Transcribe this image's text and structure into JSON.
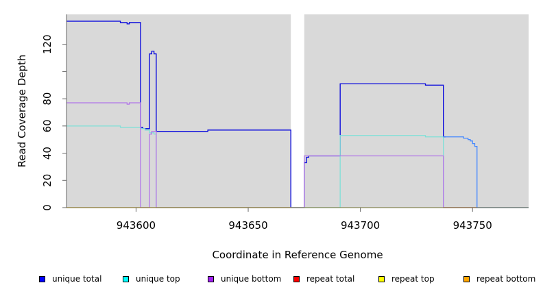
{
  "chart_data": {
    "type": "line",
    "xlabel": "Coordinate in Reference Genome",
    "ylabel": "Read Coverage Depth",
    "xlim": [
      943569,
      943775
    ],
    "ylim": [
      0,
      142
    ],
    "x_ticks": [
      943600,
      943650,
      943700,
      943750
    ],
    "x_tick_labels": [
      "943600",
      "943650",
      "943700",
      "943750"
    ],
    "y_ticks": [
      0,
      20,
      40,
      60,
      80,
      100,
      120
    ],
    "y_tick_labels": [
      "0",
      "20",
      "40",
      "60",
      "80",
      "",
      "120"
    ],
    "gap": [
      943669,
      943675
    ],
    "background": "#d9d9d9",
    "legend_position": "bottom",
    "series": [
      {
        "name": "unique total",
        "color": "#0000dd",
        "legend_color": "#0000ff",
        "x": [
          943569,
          943593,
          943593,
          943596,
          943596,
          943597,
          943597,
          943602,
          943602,
          943603,
          943603,
          943606,
          943606,
          943607,
          943607,
          943608,
          943608,
          943609,
          943609,
          943632,
          943632,
          943669,
          943669,
          943675,
          943675,
          943676,
          943676,
          943677,
          943677,
          943691,
          943691,
          943729,
          943729,
          943737,
          943737,
          943738
        ],
        "y": [
          137,
          137,
          136,
          136,
          135,
          135,
          136,
          136,
          59,
          59,
          58,
          58,
          113,
          113,
          115,
          115,
          113,
          113,
          56,
          56,
          57,
          57,
          0,
          0,
          33,
          33,
          37,
          37,
          38,
          38,
          91,
          91,
          90,
          90,
          52,
          52
        ]
      },
      {
        "name": "unique top",
        "color": "#7fe0d8",
        "legend_color": "#00ffff",
        "x": [
          943569,
          943593,
          943593,
          943602,
          943602,
          943604,
          943604,
          943606,
          943606,
          943608,
          943608,
          943609,
          943609,
          943691,
          943691,
          943729,
          943729,
          943737,
          943737,
          943775
        ],
        "y": [
          60,
          60,
          59,
          59,
          58,
          58,
          57,
          57,
          55,
          55,
          54,
          54,
          0,
          0,
          53,
          53,
          52,
          52,
          0,
          0
        ]
      },
      {
        "name": "unique bottom",
        "color": "#b278e8",
        "legend_color": "#a020f0",
        "x": [
          943569,
          943596,
          943596,
          943597,
          943597,
          943602,
          943602,
          943604,
          943604,
          943606,
          943606,
          943607,
          943607,
          943609,
          943609,
          943675,
          943675,
          943691,
          943691,
          943737,
          943737,
          943775
        ],
        "y": [
          77,
          77,
          76,
          76,
          77,
          77,
          0,
          0,
          0,
          0,
          54,
          54,
          56,
          56,
          0,
          0,
          38,
          38,
          38,
          38,
          0,
          0
        ]
      },
      {
        "name": "repeat total",
        "color": "#ff0000",
        "legend_color": "#ff0000",
        "x": [
          943737,
          943752
        ],
        "y": [
          0,
          0
        ]
      },
      {
        "name": "repeat top",
        "color": "#ffff00",
        "legend_color": "#ffff00",
        "x": [
          943569,
          943775
        ],
        "y": [
          0,
          0
        ]
      },
      {
        "name": "repeat bottom",
        "color": "#ffa500",
        "legend_color": "#ffa500",
        "x": [
          943569,
          943669
        ],
        "y": [
          0,
          0
        ]
      },
      {
        "name": "",
        "color": "#4488ff",
        "legend_color": "",
        "x": [
          943737,
          943746,
          943746,
          943748,
          943748,
          943749,
          943749,
          943750,
          943750,
          943751,
          943751,
          943752,
          943752,
          943775
        ],
        "y": [
          52,
          52,
          51,
          51,
          50,
          50,
          49,
          49,
          47,
          47,
          45,
          45,
          0,
          0
        ]
      }
    ]
  }
}
